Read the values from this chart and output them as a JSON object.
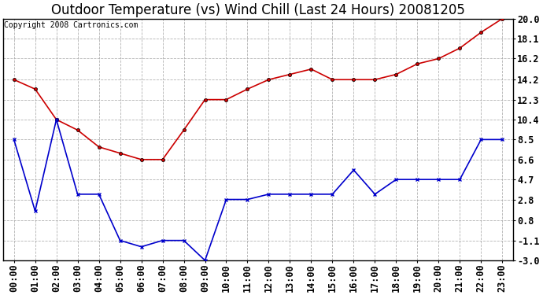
{
  "title": "Outdoor Temperature (vs) Wind Chill (Last 24 Hours) 20081205",
  "copyright": "Copyright 2008 Cartronics.com",
  "x_labels": [
    "00:00",
    "01:00",
    "02:00",
    "03:00",
    "04:00",
    "05:00",
    "06:00",
    "07:00",
    "08:00",
    "09:00",
    "10:00",
    "11:00",
    "12:00",
    "13:00",
    "14:00",
    "15:00",
    "16:00",
    "17:00",
    "18:00",
    "19:00",
    "20:00",
    "21:00",
    "22:00",
    "23:00"
  ],
  "temp_red": [
    14.2,
    13.3,
    10.4,
    9.4,
    7.8,
    7.2,
    6.6,
    6.6,
    9.4,
    12.3,
    12.3,
    13.3,
    14.2,
    14.7,
    15.2,
    14.2,
    14.2,
    14.2,
    14.7,
    15.7,
    16.2,
    17.2,
    18.7,
    20.0
  ],
  "wind_blue": [
    8.5,
    1.7,
    10.4,
    3.3,
    3.3,
    -1.1,
    -1.7,
    -1.1,
    -1.1,
    -3.0,
    2.8,
    2.8,
    3.3,
    3.3,
    3.3,
    3.3,
    5.6,
    3.3,
    4.7,
    4.7,
    4.7,
    4.7,
    8.5,
    8.5
  ],
  "y_ticks": [
    20.0,
    18.1,
    16.2,
    14.2,
    12.3,
    10.4,
    8.5,
    6.6,
    4.7,
    2.8,
    0.8,
    -1.1,
    -3.0
  ],
  "y_min": -3.0,
  "y_max": 20.0,
  "red_color": "#cc0000",
  "blue_color": "#0000cc",
  "bg_color": "#ffffff",
  "plot_bg_color": "#ffffff",
  "grid_color": "#aaaaaa",
  "title_fontsize": 12,
  "copyright_fontsize": 7,
  "tick_fontsize": 8.5
}
